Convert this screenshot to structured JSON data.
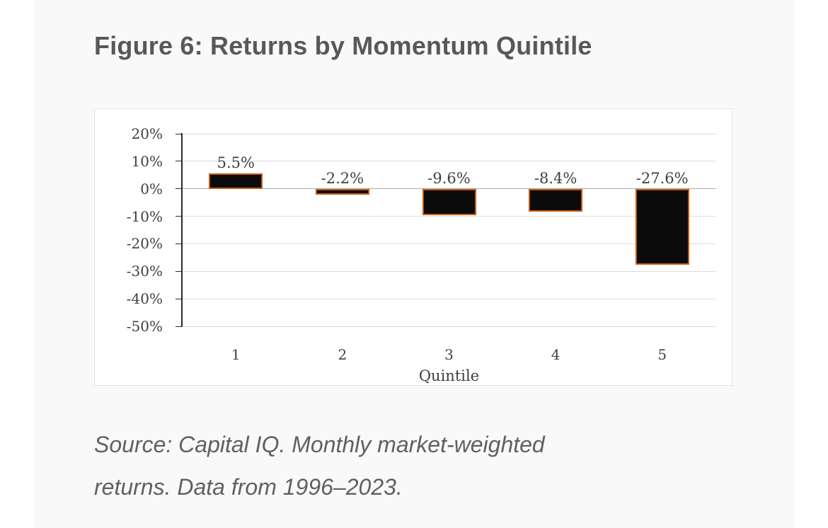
{
  "figure": {
    "title": "Figure 6: Returns by Momentum Quintile",
    "source_lines": [
      "Source: Capital IQ. Monthly market-weighted",
      "returns. Data from 1996–2023."
    ]
  },
  "chart_data": {
    "type": "bar",
    "categories": [
      "1",
      "2",
      "3",
      "4",
      "5"
    ],
    "values": [
      5.5,
      -2.2,
      -9.6,
      -8.4,
      -27.6
    ],
    "data_labels": [
      "5.5%",
      "-2.2%",
      "-9.6%",
      "-8.4%",
      "-27.6%"
    ],
    "title": "",
    "xlabel": "Quintile",
    "ylabel": "",
    "ylim": [
      -50,
      20
    ],
    "ytick_step": 10,
    "ytick_labels": [
      "20%",
      "10%",
      "0%",
      "-10%",
      "-20%",
      "-30%",
      "-40%",
      "-50%"
    ],
    "grid": true,
    "legend": "none",
    "colors": {
      "bar_fill": "#0b0b0b",
      "bar_border": "#c55a11",
      "gridline": "#dcdcdc",
      "zero_line": "#ababab",
      "axis": "#2b2b2b",
      "text": "#3f3f3f"
    }
  }
}
